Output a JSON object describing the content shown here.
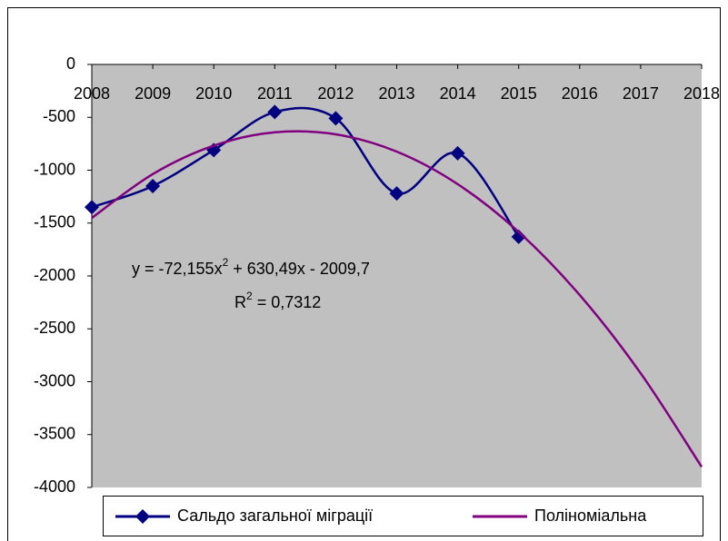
{
  "chart_data": {
    "type": "line",
    "categories": [
      "2008",
      "2009",
      "2010",
      "2011",
      "2012",
      "2013",
      "2014",
      "2015",
      "2016",
      "2017",
      "2018"
    ],
    "series": [
      {
        "name": "Сальдо загальної міграції",
        "color": "#000080",
        "marker": "diamond",
        "values": [
          -1350,
          -1150,
          -810,
          -450,
          -510,
          -1220,
          -840,
          -1630,
          null,
          null,
          null
        ]
      },
      {
        "name": "Поліноміальна",
        "color": "#800080",
        "values": [
          -1451,
          -1037,
          -768,
          -642,
          -661,
          -824,
          -1132,
          -1584,
          -2180,
          -2920,
          -3805
        ]
      }
    ],
    "ylim": [
      -4000,
      0
    ],
    "yticks": [
      0,
      -500,
      -1000,
      -1500,
      -2000,
      -2500,
      -3000,
      -3500,
      -4000
    ],
    "equation": [
      "y = -72,155x",
      "2",
      " + 630,49x - 2009,7"
    ],
    "r_squared": [
      "R",
      "2",
      " = 0,7312"
    ],
    "plot_background": "#c0c0c0",
    "smooth": true,
    "legend": "bottom"
  }
}
